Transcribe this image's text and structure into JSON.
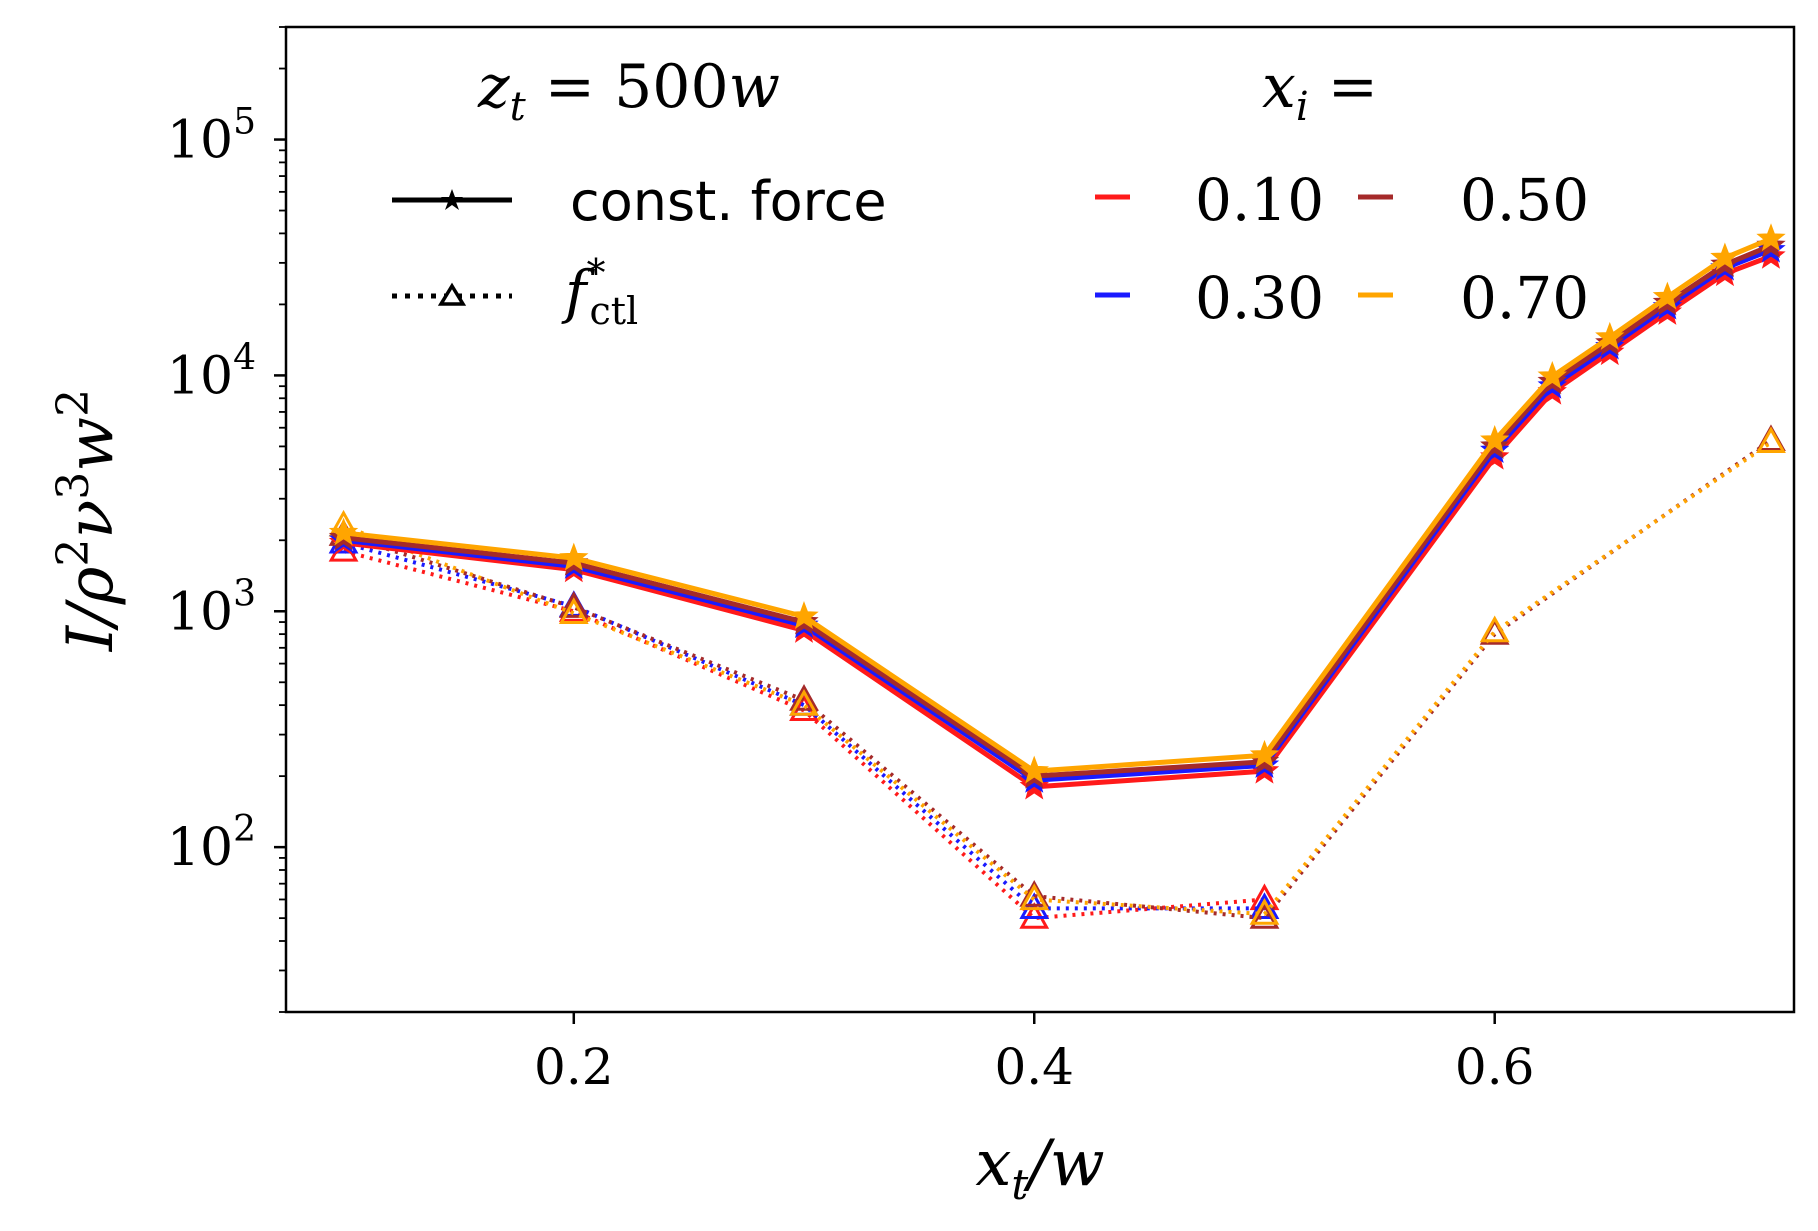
{
  "chart_data": {
    "type": "line",
    "yscale": "log",
    "xlim": [
      0.075,
      0.73
    ],
    "ylim": [
      20,
      300000
    ],
    "x_ticks": [
      {
        "value": 0.2,
        "label": "0.2"
      },
      {
        "value": 0.4,
        "label": "0.4"
      },
      {
        "value": 0.6,
        "label": "0.6"
      }
    ],
    "y_ticks": [
      {
        "value": 100,
        "base": "10",
        "exp": "2"
      },
      {
        "value": 1000,
        "base": "10",
        "exp": "3"
      },
      {
        "value": 10000,
        "base": "10",
        "exp": "4"
      },
      {
        "value": 100000,
        "base": "10",
        "exp": "5"
      }
    ],
    "xlabel": {
      "var": "x",
      "sub": "t",
      "rest": "/w"
    },
    "ylabel": {
      "a": "I/ρ",
      "sup1": "2",
      "b": "ν",
      "sup2": "3",
      "c": "w",
      "sup3": "2"
    },
    "annotation": {
      "var": "z",
      "sub": "t",
      "eq": " = 500",
      "w": "w"
    },
    "legend_style": {
      "title": {
        "var": "x",
        "sub": "i",
        "eq": " ="
      },
      "solid_label": "const. force",
      "dotted_label": {
        "var": "f",
        "sup": "*",
        "sub": "ctl"
      }
    },
    "legend_colors": [
      {
        "label": "0.10",
        "color": "#ff1a1a"
      },
      {
        "label": "0.50",
        "color": "#a52a2a"
      },
      {
        "label": "0.30",
        "color": "#1a1aff"
      },
      {
        "label": "0.70",
        "color": "#ffa500"
      }
    ],
    "x": [
      0.1,
      0.2,
      0.3,
      0.4,
      0.5,
      0.6,
      0.625,
      0.65,
      0.675,
      0.7,
      0.72
    ],
    "series": [
      {
        "name": "const. force, x_i = 0.10",
        "style": "solid",
        "marker": "star",
        "color": "#ff1a1a",
        "values": [
          1950,
          1500,
          830,
          180,
          210,
          4500,
          8500,
          12500,
          18500,
          27000,
          32000
        ]
      },
      {
        "name": "const. force, x_i = 0.30",
        "style": "solid",
        "marker": "star",
        "color": "#1a1aff",
        "values": [
          2000,
          1550,
          870,
          192,
          222,
          4800,
          9000,
          13200,
          19500,
          28500,
          34000
        ]
      },
      {
        "name": "const. force, x_i = 0.50",
        "style": "solid",
        "marker": "star",
        "color": "#a52a2a",
        "values": [
          2050,
          1600,
          900,
          200,
          230,
          5000,
          9400,
          13700,
          20300,
          29500,
          35500
        ]
      },
      {
        "name": "const. force, x_i = 0.70",
        "style": "solid",
        "marker": "star",
        "color": "#ffa500",
        "values": [
          2150,
          1680,
          950,
          210,
          245,
          5300,
          9900,
          14500,
          21500,
          31500,
          38000
        ]
      },
      {
        "name": "f*_ctl, x_i = 0.10",
        "style": "dotted",
        "marker": "triangle",
        "color": "#ff1a1a",
        "values": [
          1800,
          1000,
          380,
          50,
          60,
          null,
          null,
          null,
          null,
          null,
          null
        ]
      },
      {
        "name": "f*_ctl, x_i = 0.30",
        "style": "dotted",
        "marker": "triangle",
        "color": "#1a1aff",
        "values": [
          1950,
          1050,
          400,
          55,
          55,
          null,
          null,
          null,
          null,
          null,
          null
        ]
      },
      {
        "name": "f*_ctl, x_i = 0.50",
        "style": "dotted",
        "marker": "triangle",
        "color": "#a52a2a",
        "values": [
          2100,
          1040,
          420,
          62,
          50,
          800,
          null,
          null,
          null,
          null,
          5300
        ]
      },
      {
        "name": "f*_ctl, x_i = 0.70",
        "style": "dotted",
        "marker": "triangle",
        "color": "#ffa500",
        "values": [
          2300,
          980,
          400,
          60,
          52,
          820,
          null,
          null,
          null,
          null,
          5200
        ]
      }
    ]
  }
}
